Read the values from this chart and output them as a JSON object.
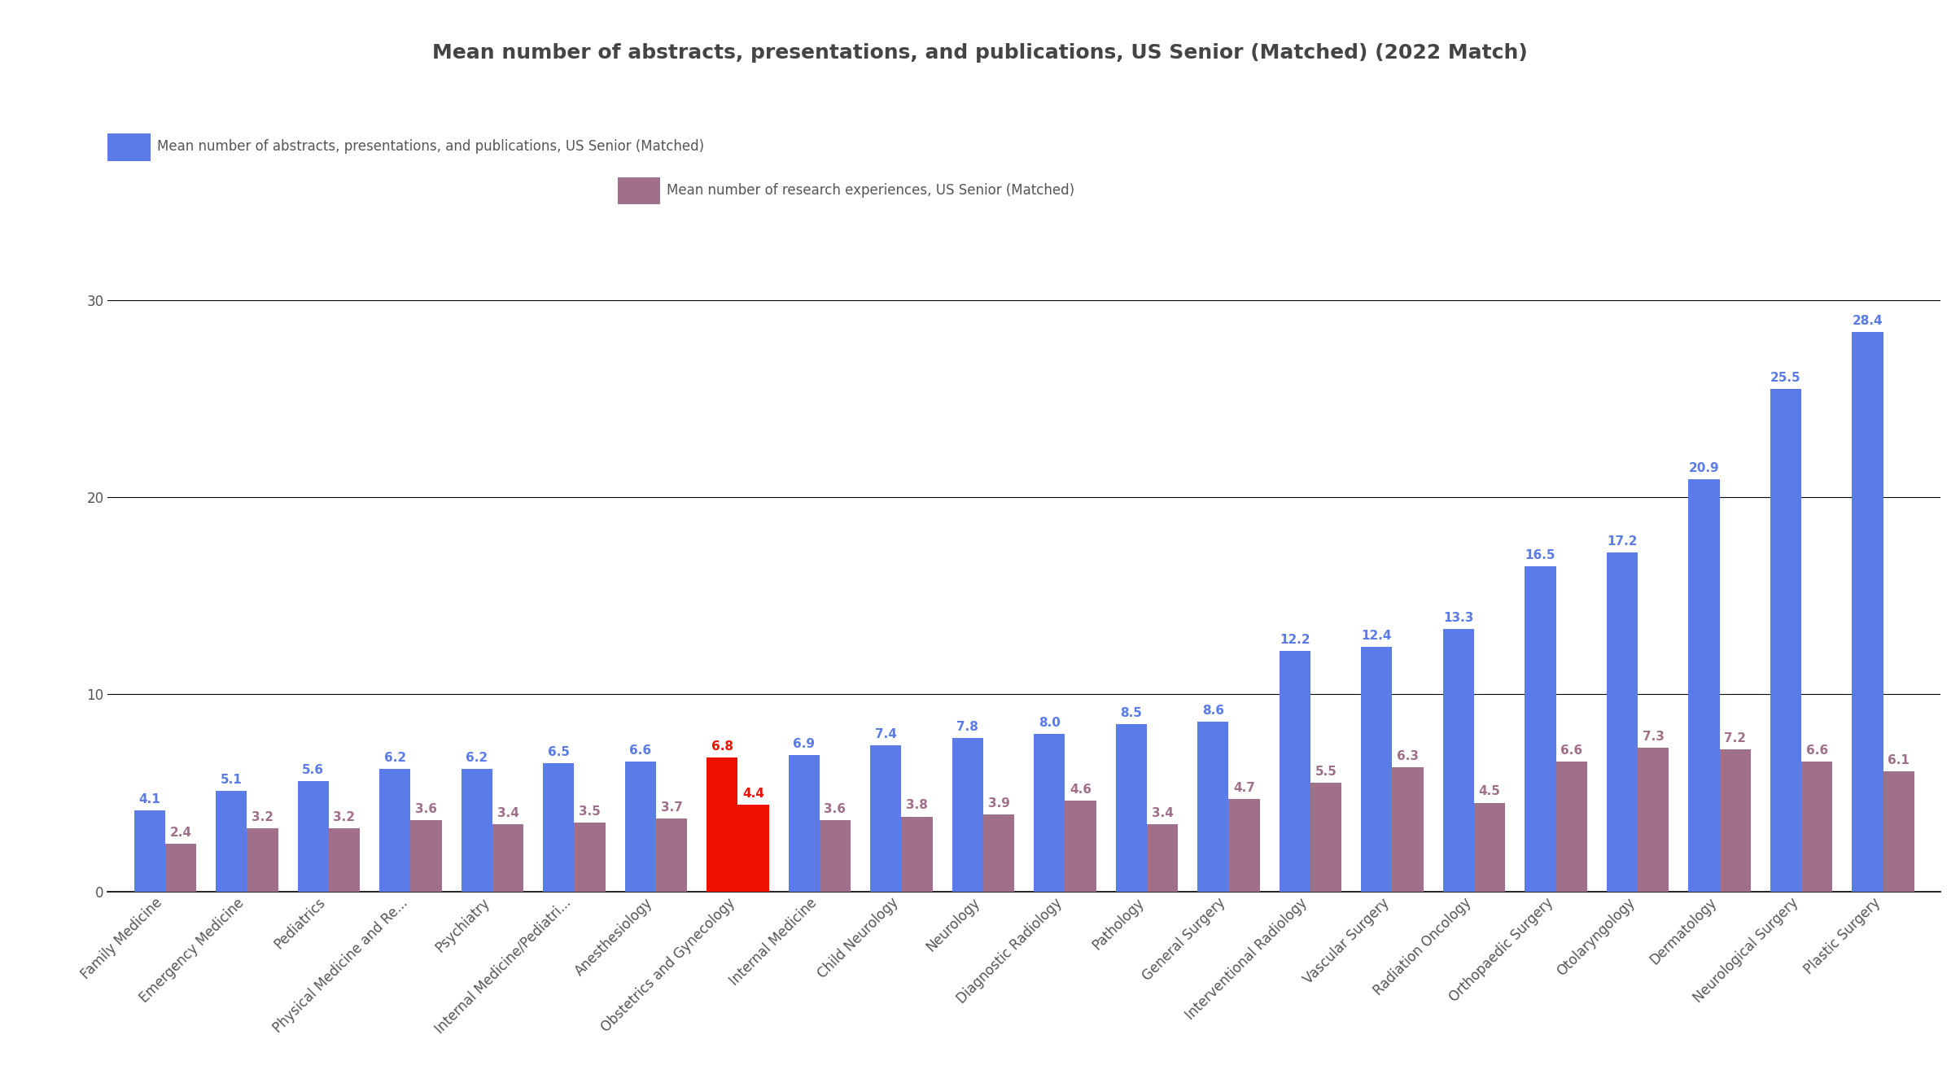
{
  "title": "Mean number of abstracts, presentations, and publications, US Senior (Matched) (2022 Match)",
  "legend1": "Mean number of abstracts, presentations, and publications, US Senior (Matched)",
  "legend2": "Mean number of research experiences, US Senior (Matched)",
  "categories": [
    "Family Medicine",
    "Emergency Medicine",
    "Pediatrics",
    "Physical Medicine and Re...",
    "Psychiatry",
    "Internal Medicine/Pediatri...",
    "Anesthesiology",
    "Obstetrics and Gynecology",
    "Internal Medicine",
    "Child Neurology",
    "Neurology",
    "Diagnostic Radiology",
    "Pathology",
    "General Surgery",
    "Interventional Radiology",
    "Vascular Surgery",
    "Radiation Oncology",
    "Orthopaedic Surgery",
    "Otolaryngology",
    "Dermatology",
    "Neurological Surgery",
    "Plastic Surgery"
  ],
  "blue_values": [
    4.1,
    5.1,
    5.6,
    6.2,
    6.2,
    6.5,
    6.6,
    6.8,
    6.9,
    7.4,
    7.8,
    8.0,
    8.5,
    8.6,
    12.2,
    12.4,
    13.3,
    16.5,
    17.2,
    20.9,
    25.5,
    28.4
  ],
  "pink_values": [
    2.4,
    3.2,
    3.2,
    3.6,
    3.4,
    3.5,
    3.7,
    4.4,
    3.6,
    3.8,
    3.9,
    4.6,
    3.4,
    4.7,
    5.5,
    6.3,
    4.5,
    6.6,
    7.3,
    7.2,
    6.6,
    6.1
  ],
  "highlight_index": 7,
  "blue_color": "#5B7BE8",
  "pink_color": "#A0708A",
  "highlight_blue_color": "#EE1100",
  "highlight_pink_color": "#EE1100",
  "background_color": "#FFFFFF",
  "title_color": "#444444",
  "blue_label_color": "#5B7BE8",
  "pink_label_color": "#A0708A",
  "highlight_label_color": "#EE1100",
  "ylim": [
    0,
    32
  ],
  "yticks": [
    0,
    10,
    20,
    30
  ],
  "title_fontsize": 18,
  "label_fontsize": 11,
  "tick_fontsize": 12,
  "legend_fontsize": 12,
  "bar_width": 0.38
}
